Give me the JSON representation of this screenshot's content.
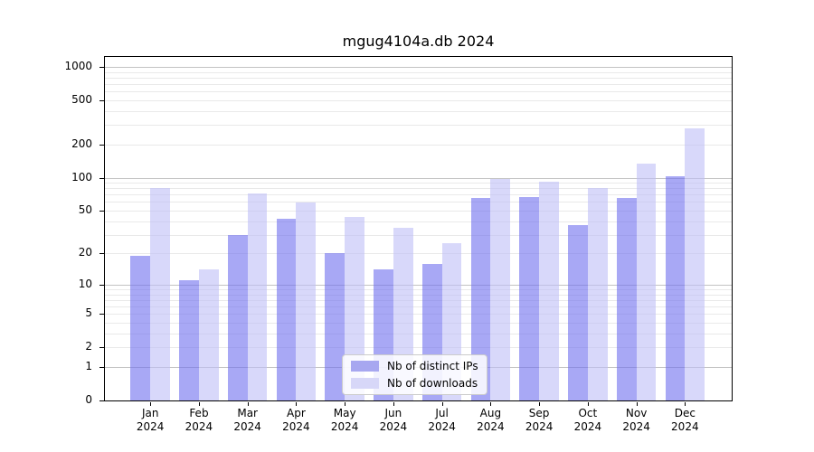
{
  "title": "mgug4104a.db 2024",
  "chart_data": {
    "type": "bar",
    "title": "mgug4104a.db 2024",
    "scale": "log1p",
    "grid": true,
    "legend_position": "lower center",
    "categories": [
      "Jan",
      "Feb",
      "Mar",
      "Apr",
      "May",
      "Jun",
      "Jul",
      "Aug",
      "Sep",
      "Oct",
      "Nov",
      "Dec"
    ],
    "category_year": "2024",
    "y_ticks": [
      0,
      1,
      2,
      5,
      10,
      20,
      50,
      100,
      200,
      500,
      1000
    ],
    "ylim": [
      0,
      1000
    ],
    "series": [
      {
        "name": "Nb of distinct IPs",
        "color": "#a7a7f0",
        "values": [
          19,
          11,
          30,
          42,
          20,
          14,
          16,
          65,
          67,
          37,
          65,
          102
        ]
      },
      {
        "name": "Nb of downloads",
        "color": "#d7d7f8",
        "values": [
          81,
          14,
          72,
          59,
          44,
          35,
          25,
          98,
          92,
          80,
          133,
          277
        ]
      }
    ]
  }
}
